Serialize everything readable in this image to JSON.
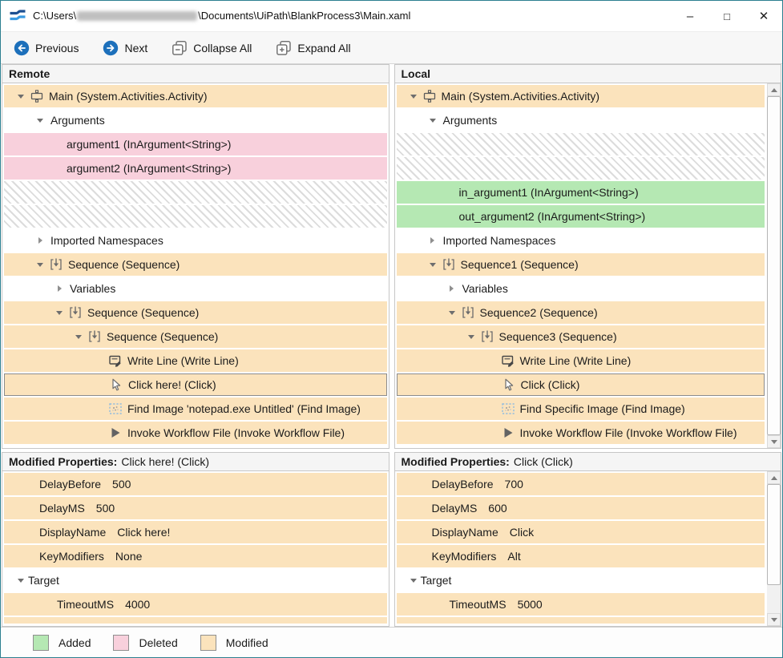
{
  "window": {
    "title_prefix": "C:\\Users\\",
    "title_suffix": "\\Documents\\UiPath\\BlankProcess3\\Main.xaml",
    "controls": {
      "minimize": "–",
      "maximize": "□",
      "close": "✕"
    }
  },
  "toolbar": {
    "buttons": [
      {
        "id": "previous",
        "label": "Previous",
        "icon": "previous-circle"
      },
      {
        "id": "next",
        "label": "Next",
        "icon": "next-circle"
      },
      {
        "id": "collapse-all",
        "label": "Collapse All",
        "icon": "collapse-all"
      },
      {
        "id": "expand-all",
        "label": "Expand All",
        "icon": "expand-all"
      }
    ]
  },
  "panels": {
    "remote": {
      "header": "Remote"
    },
    "local": {
      "header": "Local"
    }
  },
  "remote_tree": [
    {
      "label": "Main (System.Activities.Activity)",
      "type": "modified",
      "level": 0,
      "arrow": "expanded",
      "icon": "activity"
    },
    {
      "label": "Arguments",
      "type": "plain",
      "level": 1,
      "arrow": "expanded"
    },
    {
      "label": "argument1 (InArgument<String>)",
      "type": "deleted",
      "level": 2
    },
    {
      "label": "argument2 (InArgument<String>)",
      "type": "deleted",
      "level": 2
    },
    {
      "type": "placeholder"
    },
    {
      "type": "placeholder"
    },
    {
      "label": "Imported Namespaces",
      "type": "plain",
      "level": 1,
      "arrow": "collapsed"
    },
    {
      "label": "Sequence (Sequence)",
      "type": "modified",
      "level": 1,
      "arrow": "expanded",
      "icon": "sequence"
    },
    {
      "label": "Variables",
      "type": "plain",
      "level": 2,
      "arrow": "collapsed"
    },
    {
      "label": "Sequence (Sequence)",
      "type": "modified",
      "level": 2,
      "arrow": "expanded",
      "icon": "sequence"
    },
    {
      "label": "Sequence (Sequence)",
      "type": "modified",
      "level": 3,
      "arrow": "expanded",
      "icon": "sequence"
    },
    {
      "label": "Write Line (Write Line)",
      "type": "modified",
      "level": 4,
      "icon": "write-line"
    },
    {
      "label": "Click here! (Click)",
      "type": "modified",
      "level": 4,
      "icon": "click-cursor",
      "selected": true
    },
    {
      "label": "Find Image 'notepad.exe Untitled' (Find Image)",
      "type": "modified",
      "level": 4,
      "icon": "find-image"
    },
    {
      "label": "Invoke Workflow File (Invoke Workflow File)",
      "type": "modified",
      "level": 4,
      "icon": "invoke-workflow"
    }
  ],
  "local_tree": [
    {
      "label": "Main (System.Activities.Activity)",
      "type": "modified",
      "level": 0,
      "arrow": "expanded",
      "icon": "activity"
    },
    {
      "label": "Arguments",
      "type": "plain",
      "level": 1,
      "arrow": "expanded"
    },
    {
      "type": "placeholder"
    },
    {
      "type": "placeholder"
    },
    {
      "label": "in_argument1 (InArgument<String>)",
      "type": "added",
      "level": 2
    },
    {
      "label": "out_argument2 (InArgument<String>)",
      "type": "added",
      "level": 2
    },
    {
      "label": "Imported Namespaces",
      "type": "plain",
      "level": 1,
      "arrow": "collapsed"
    },
    {
      "label": "Sequence1 (Sequence)",
      "type": "modified",
      "level": 1,
      "arrow": "expanded",
      "icon": "sequence"
    },
    {
      "label": "Variables",
      "type": "plain",
      "level": 2,
      "arrow": "collapsed"
    },
    {
      "label": "Sequence2 (Sequence)",
      "type": "modified",
      "level": 2,
      "arrow": "expanded",
      "icon": "sequence"
    },
    {
      "label": "Sequence3 (Sequence)",
      "type": "modified",
      "level": 3,
      "arrow": "expanded",
      "icon": "sequence"
    },
    {
      "label": "Write Line (Write Line)",
      "type": "modified",
      "level": 4,
      "icon": "write-line"
    },
    {
      "label": "Click (Click)",
      "type": "modified",
      "level": 4,
      "icon": "click-cursor",
      "selected": true
    },
    {
      "label": "Find Specific Image (Find Image)",
      "type": "modified",
      "level": 4,
      "icon": "find-image"
    },
    {
      "label": "Invoke Workflow File (Invoke Workflow File)",
      "type": "modified",
      "level": 4,
      "icon": "invoke-workflow"
    }
  ],
  "remote_props": {
    "header_label": "Modified Properties:",
    "target": "Click here! (Click)",
    "rows": [
      {
        "name": "DelayBefore",
        "value": "500",
        "type": "modified",
        "level": 1
      },
      {
        "name": "DelayMS",
        "value": "500",
        "type": "modified",
        "level": 1
      },
      {
        "name": "DisplayName",
        "value": "Click here!",
        "type": "modified",
        "level": 1
      },
      {
        "name": "KeyModifiers",
        "value": "None",
        "type": "modified",
        "level": 1
      },
      {
        "name": "Target",
        "value": "",
        "type": "plain",
        "level": 0,
        "arrow": "expanded"
      },
      {
        "name": "TimeoutMS",
        "value": "4000",
        "type": "modified",
        "level": 2
      },
      {
        "type": "modified",
        "partial": true
      }
    ]
  },
  "local_props": {
    "header_label": "Modified Properties:",
    "target": "Click (Click)",
    "rows": [
      {
        "name": "DelayBefore",
        "value": "700",
        "type": "modified",
        "level": 1
      },
      {
        "name": "DelayMS",
        "value": "600",
        "type": "modified",
        "level": 1
      },
      {
        "name": "DisplayName",
        "value": "Click",
        "type": "modified",
        "level": 1
      },
      {
        "name": "KeyModifiers",
        "value": "Alt",
        "type": "modified",
        "level": 1
      },
      {
        "name": "Target",
        "value": "",
        "type": "plain",
        "level": 0,
        "arrow": "expanded"
      },
      {
        "name": "TimeoutMS",
        "value": "5000",
        "type": "modified",
        "level": 2
      },
      {
        "type": "modified",
        "partial": true
      }
    ]
  },
  "legend": {
    "items": [
      {
        "label": "Added",
        "color": "#b5e8b3"
      },
      {
        "label": "Deleted",
        "color": "#f8d0dc"
      },
      {
        "label": "Modified",
        "color": "#fbe3bc"
      }
    ]
  },
  "colors": {
    "added": "#b5e8b3",
    "deleted": "#f8d0dc",
    "modified": "#fbe3bc",
    "accent_blue": "#1d70bb",
    "window_border": "#2c7f90"
  }
}
